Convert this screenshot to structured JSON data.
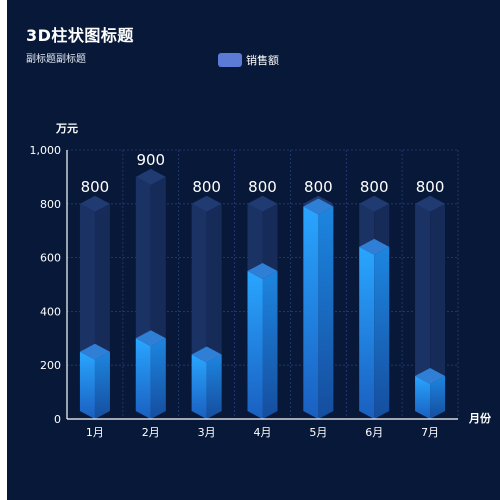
{
  "title": "3D柱状图标题",
  "subtitle": "副标题副标题",
  "legend": {
    "label": "销售额",
    "color": "#5b7bd6"
  },
  "colors": {
    "background": "#081838",
    "bar_top": "#29a6ff",
    "bar_bottom": "#1a5fc0",
    "ghost_bar": "#1c3366",
    "grid": "#233f7a"
  },
  "chart_data": {
    "type": "bar",
    "title": "3D柱状图标题",
    "subtitle": "副标题副标题",
    "xlabel": "月份",
    "ylabel": "万元",
    "ylim": [
      0,
      1000
    ],
    "yticks": [
      0,
      200,
      400,
      600,
      800,
      1000
    ],
    "ytick_labels": [
      "0",
      "200",
      "400",
      "600",
      "800",
      "1,000"
    ],
    "grid": true,
    "legend_position": "top-center",
    "categories": [
      "1月",
      "2月",
      "3月",
      "4月",
      "5月",
      "6月",
      "7月"
    ],
    "series": [
      {
        "name": "销售额",
        "values": [
          250,
          300,
          240,
          550,
          790,
          640,
          160
        ]
      }
    ],
    "background_bars": [
      800,
      900,
      800,
      800,
      800,
      800,
      800
    ]
  }
}
